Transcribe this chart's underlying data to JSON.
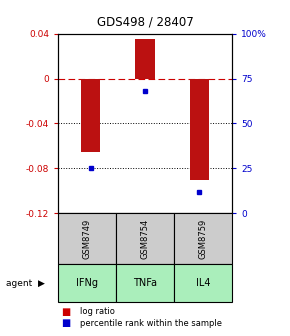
{
  "title": "GDS498 / 28407",
  "samples": [
    "GSM8749",
    "GSM8754",
    "GSM8759"
  ],
  "agents": [
    "IFNg",
    "TNFa",
    "IL4"
  ],
  "log_ratios": [
    -0.065,
    0.035,
    -0.09
  ],
  "percentile_ranks": [
    0.25,
    0.68,
    0.12
  ],
  "bar_color": "#bb1111",
  "dot_color": "#0000cc",
  "ylim_left": [
    -0.12,
    0.04
  ],
  "yticks_left": [
    -0.12,
    -0.08,
    -0.04,
    0.0,
    0.04
  ],
  "ytick_labels_left": [
    "-0.12",
    "-0.08",
    "-0.04",
    "0",
    "0.04"
  ],
  "yticks_right_pct": [
    0,
    25,
    50,
    75,
    100
  ],
  "ytick_labels_right": [
    "0",
    "25",
    "50",
    "75",
    "100%"
  ],
  "dashed_zero_color": "#cc0000",
  "dotted_grid_color": "#000000",
  "sample_box_color": "#cccccc",
  "agent_box_color": "#aaeebb",
  "bar_width": 0.35,
  "legend_log_ratio_color": "#cc0000",
  "legend_percentile_color": "#0000cc"
}
